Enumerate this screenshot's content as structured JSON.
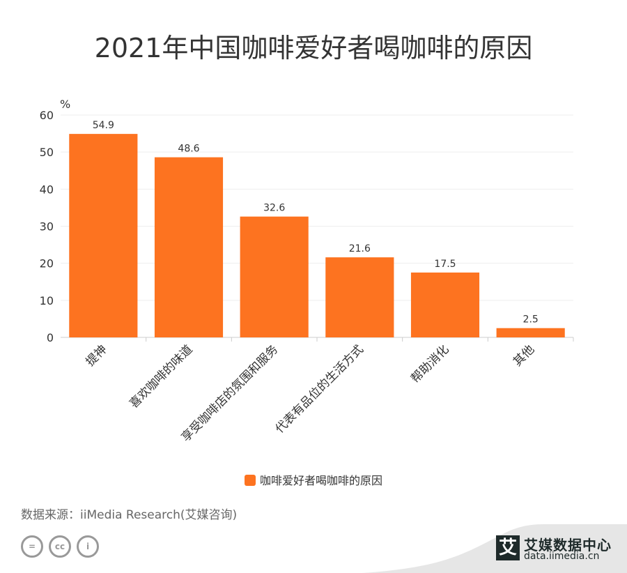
{
  "title": "2021年中国咖啡爱好者喝咖啡的原因",
  "chart_data": {
    "type": "bar",
    "title": "2021年中国咖啡爱好者喝咖啡的原因",
    "ylabel": "%",
    "xlabel": "",
    "ylim": [
      0,
      60
    ],
    "yticks": [
      0,
      10,
      20,
      30,
      40,
      50,
      60
    ],
    "grid": true,
    "legend_position": "bottom",
    "color": "#fd7320",
    "categories": [
      "提神",
      "喜欢咖啡的味道",
      "享受咖啡店的氛围和服务",
      "代表有品位的生活方式",
      "帮助消化",
      "其他"
    ],
    "series": [
      {
        "name": "咖啡爱好者喝咖啡的原因",
        "values": [
          54.9,
          48.6,
          32.6,
          21.6,
          17.5,
          2.5
        ]
      }
    ]
  },
  "footer": {
    "source": "数据来源：iiMedia Research(艾媒咨询)",
    "brand_name": "艾媒数据中心",
    "brand_url": "data.iimedia.cn",
    "brand_logo": "艾",
    "license_icons": [
      "no-derivatives-icon",
      "cc-icon",
      "attribution-icon"
    ]
  }
}
